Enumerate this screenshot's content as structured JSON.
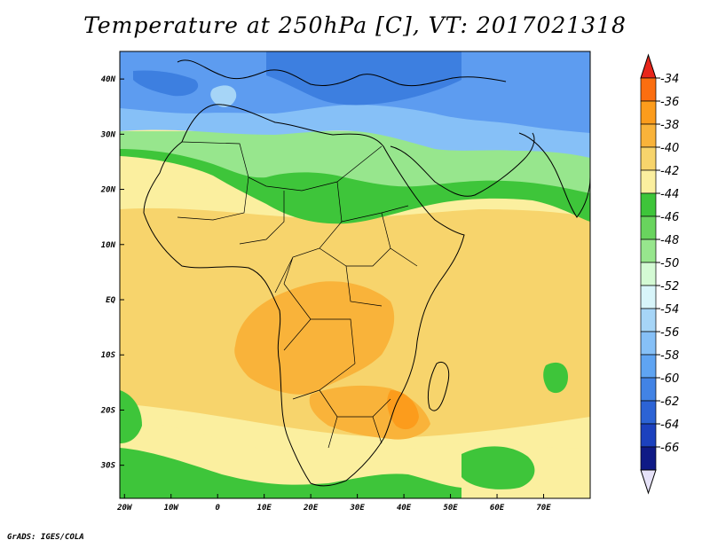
{
  "title": "Temperature at 250hPa [C], VT: 2017021318",
  "footer": "GrADS: IGES/COLA",
  "map": {
    "lon_range": [
      -21,
      80
    ],
    "lat_range": [
      -36,
      45
    ],
    "lon_ticks": [
      {
        "value": -20,
        "label": "20W"
      },
      {
        "value": -10,
        "label": "10W"
      },
      {
        "value": 0,
        "label": "0"
      },
      {
        "value": 10,
        "label": "10E"
      },
      {
        "value": 20,
        "label": "20E"
      },
      {
        "value": 30,
        "label": "30E"
      },
      {
        "value": 40,
        "label": "40E"
      },
      {
        "value": 50,
        "label": "50E"
      },
      {
        "value": 60,
        "label": "60E"
      },
      {
        "value": 70,
        "label": "70E"
      }
    ],
    "lat_ticks": [
      {
        "value": 40,
        "label": "40N"
      },
      {
        "value": 30,
        "label": "30N"
      },
      {
        "value": 20,
        "label": "20N"
      },
      {
        "value": 10,
        "label": "10N"
      },
      {
        "value": 0,
        "label": "EQ"
      },
      {
        "value": -10,
        "label": "10S"
      },
      {
        "value": -20,
        "label": "20S"
      },
      {
        "value": -30,
        "label": "30S"
      }
    ]
  },
  "colorbar": {
    "levels": [
      "-34",
      "-36",
      "-38",
      "-40",
      "-42",
      "-44",
      "-46",
      "-48",
      "-50",
      "-52",
      "-54",
      "-56",
      "-58",
      "-60",
      "-62",
      "-64",
      "-66"
    ],
    "top_arrow_color": "#e8261b",
    "bottom_arrow_color": "#e6e2f8",
    "colors": [
      "#fb6e10",
      "#fc9c1c",
      "#f9b33a",
      "#f7d46c",
      "#fbef9f",
      "#3ec53a",
      "#69d45e",
      "#97e68d",
      "#d4fad4",
      "#d8f5fa",
      "#a6d5f7",
      "#86c0f7",
      "#5fa4f2",
      "#4283e5",
      "#2c63d5",
      "#1c41be",
      "#0f1a86"
    ],
    "bottom_cap_color": "#0f1a86"
  },
  "field_colors": {
    "deep_blue": "#3d7fe0",
    "blue": "#5d9cf0",
    "light_blue": "#86c0f7",
    "pale_blue": "#a6d5f7",
    "pale_green": "#97e68d",
    "green": "#3ec53a",
    "pale_yellow": "#fbef9f",
    "yellow": "#f7d46c",
    "light_orange": "#f9b33a",
    "orange": "#fc9c1c"
  }
}
